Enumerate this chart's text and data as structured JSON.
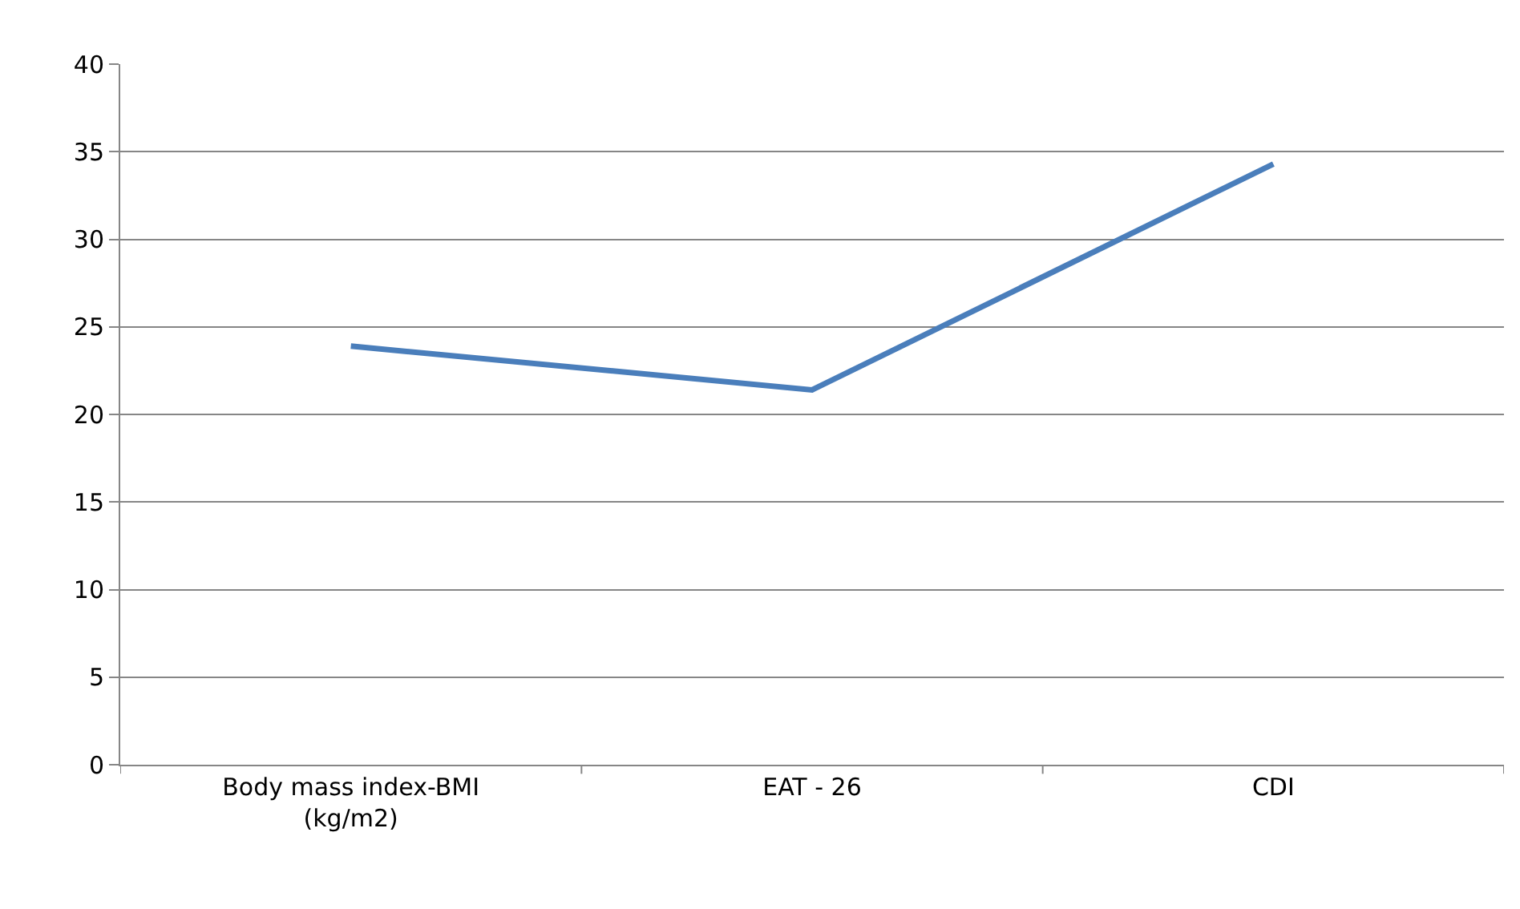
{
  "chart_data": {
    "type": "line",
    "categories": [
      "Body mass index-BMI\n(kg/m2)",
      "EAT - 26",
      "CDI"
    ],
    "series": [
      {
        "color": "#4a7ebb",
        "values": [
          23.9,
          21.4,
          34.3
        ]
      }
    ],
    "ylim": [
      0,
      40
    ],
    "yticks": [
      0,
      5,
      10,
      15,
      20,
      25,
      30,
      35,
      40
    ],
    "grid": "y",
    "marker": "none",
    "line_style": "solid"
  }
}
